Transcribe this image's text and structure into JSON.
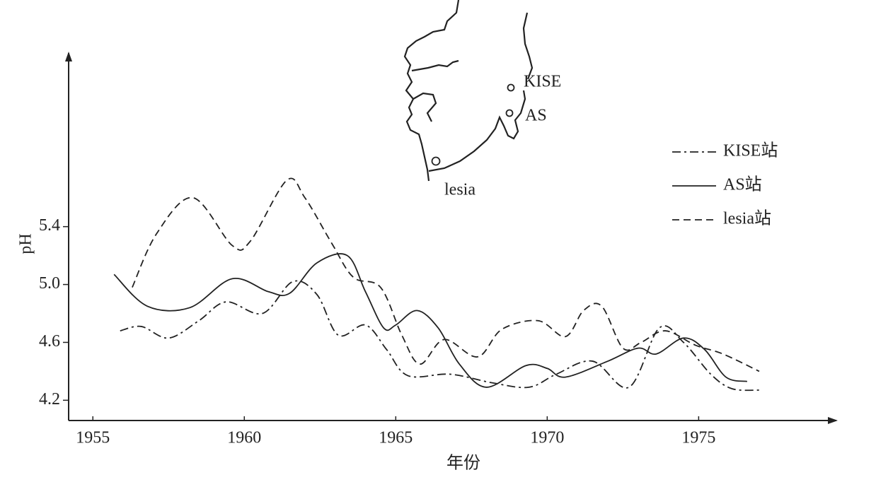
{
  "chart_data": {
    "type": "line",
    "x_label": "年份",
    "y_label": "pH",
    "annotations": [
      "KISE",
      "AS",
      "lesia"
    ],
    "xlim": [
      1954.2,
      1979.5
    ],
    "ylim": [
      4.06,
      6.6
    ],
    "xticks": [
      1955,
      1960,
      1965,
      1970,
      1975
    ],
    "yticks": [
      4.2,
      4.6,
      {
        "value": 5,
        "label": "5.0"
      },
      5.4
    ],
    "grid": false,
    "legend": "right",
    "series": [
      {
        "name": "KISE站",
        "color": "#222222",
        "dash": "dashdot",
        "x": [
          1955.9,
          1956.6,
          1957.5,
          1958.5,
          1959.4,
          1960.6,
          1961.6,
          1962.4,
          1963.1,
          1964.0,
          1964.7,
          1965.4,
          1966.8,
          1968.2,
          1969.4,
          1970.3,
          1971.5,
          1972.7,
          1973.7,
          1974.5,
          1975.4,
          1976.1,
          1977.0
        ],
        "values": [
          4.68,
          4.71,
          4.63,
          4.75,
          4.88,
          4.8,
          5.02,
          4.93,
          4.65,
          4.72,
          4.55,
          4.37,
          4.38,
          4.32,
          4.29,
          4.38,
          4.47,
          4.29,
          4.7,
          4.6,
          4.38,
          4.28,
          4.27
        ]
      },
      {
        "name": "AS站",
        "color": "#222222",
        "dash": "solid",
        "x": [
          1955.7,
          1956.8,
          1958.2,
          1959.6,
          1960.8,
          1961.5,
          1962.4,
          1963.4,
          1964.0,
          1964.6,
          1965.0,
          1965.7,
          1966.4,
          1967.1,
          1968.0,
          1969.3,
          1970.0,
          1970.6,
          1972.0,
          1973.0,
          1973.6,
          1974.5,
          1975.2,
          1975.9,
          1976.6
        ],
        "values": [
          5.07,
          4.85,
          4.84,
          5.04,
          4.95,
          4.94,
          5.15,
          5.2,
          4.95,
          4.7,
          4.72,
          4.82,
          4.7,
          4.45,
          4.29,
          4.44,
          4.42,
          4.36,
          4.47,
          4.56,
          4.52,
          4.63,
          4.55,
          4.36,
          4.33
        ]
      },
      {
        "name": "lesia站",
        "color": "#222222",
        "dash": "dashed",
        "x": [
          1956.3,
          1957.1,
          1958.3,
          1959.6,
          1960.2,
          1961.4,
          1962.0,
          1962.9,
          1963.6,
          1964.5,
          1965.2,
          1965.8,
          1966.6,
          1967.7,
          1968.5,
          1969.7,
          1970.6,
          1971.2,
          1971.8,
          1972.5,
          1973.1,
          1973.9,
          1974.9,
          1975.8,
          1977.0
        ],
        "values": [
          4.98,
          5.35,
          5.6,
          5.27,
          5.3,
          5.72,
          5.6,
          5.28,
          5.05,
          4.98,
          4.65,
          4.45,
          4.62,
          4.5,
          4.69,
          4.75,
          4.64,
          4.82,
          4.85,
          4.56,
          4.6,
          4.68,
          4.58,
          4.52,
          4.4
        ]
      }
    ]
  }
}
